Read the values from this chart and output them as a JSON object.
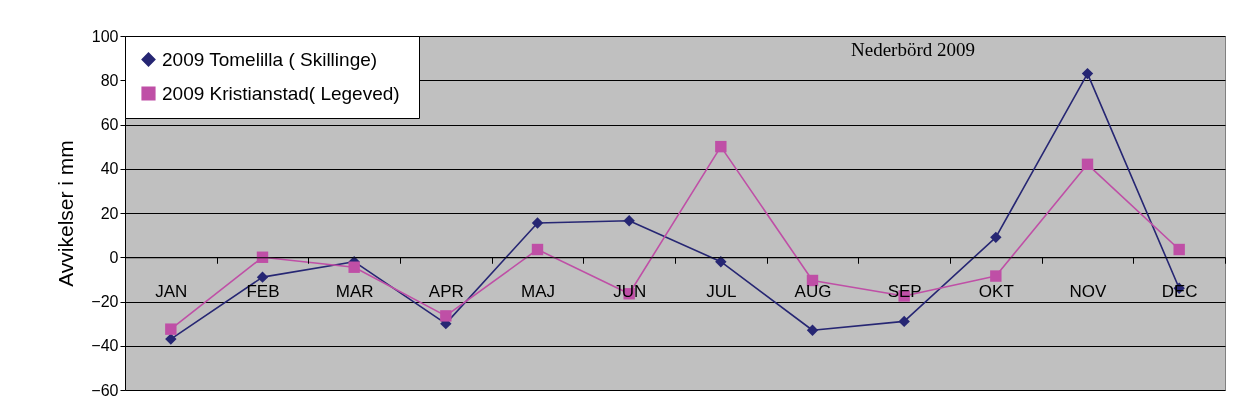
{
  "chart_data": {
    "type": "line",
    "title": "Nederbörd 2009",
    "ylabel": "Avvikelser i mm",
    "categories": [
      "JAN",
      "FEB",
      "MAR",
      "APR",
      "MAJ",
      "JUN",
      "JUL",
      "AUG",
      "SEP",
      "OKT",
      "NOV",
      "DEC"
    ],
    "series": [
      {
        "name": "2009  Tomelilla ( Skillinge)",
        "color": "#262673",
        "marker": "diamond",
        "values": [
          -37,
          -9,
          -2,
          -30,
          15.5,
          16.5,
          -2,
          -33,
          -29,
          9,
          83,
          -14
        ]
      },
      {
        "name": "2009  Kristianstad( Legeved)",
        "color": "#bf4fa6",
        "marker": "square",
        "values": [
          -32.5,
          0,
          -4.5,
          -26.5,
          3.5,
          -16.5,
          50,
          -10.5,
          -17.5,
          -8.5,
          42,
          3.5
        ]
      }
    ],
    "ylim": [
      -60,
      100
    ],
    "yticks": [
      -60,
      -40,
      -20,
      0,
      20,
      40,
      60,
      80,
      100
    ],
    "grid": "y",
    "legend": "top left",
    "line_style": "solid"
  }
}
